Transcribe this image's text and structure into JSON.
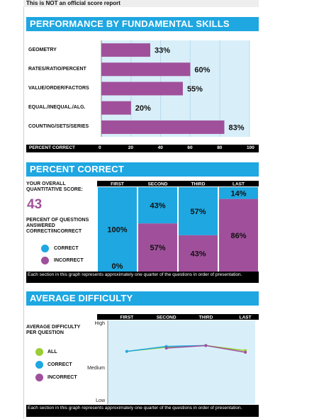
{
  "banner": "This is NOT an official score report",
  "colors": {
    "blue": "#1ea7e1",
    "purple": "#a0509b",
    "green": "#9acd32",
    "light_blue": "#d8effa",
    "black": "#000000"
  },
  "sections": {
    "performance": "PERFORMANCE BY FUNDAMENTAL SKILLS",
    "percent_correct": "PERCENT CORRECT",
    "avg_difficulty": "AVERAGE DIFFICULTY"
  },
  "percent_correct_panel": {
    "overall_label": "YOUR OVERALL QUANTITATIVE SCORE:",
    "overall_score": "43",
    "questions_label": "PERCENT OF QUESTIONS ANSWERED CORRECT/INCORRECT",
    "legend": {
      "correct": "CORRECT",
      "incorrect": "INCORRECT"
    },
    "note": "Each section in this graph represents approximately one quarter of the questions in order of presentation."
  },
  "difficulty_panel": {
    "label": "AVERAGE DIFFICULTY PER QUESTION",
    "legend": {
      "all": "ALL",
      "correct": "CORRECT",
      "incorrect": "INCORRECT"
    },
    "note": "Each section in this graph represents approximately one quarter of the questions in order of presentation."
  },
  "chart_data": [
    {
      "type": "bar",
      "title": "PERFORMANCE BY FUNDAMENTAL SKILLS",
      "orientation": "horizontal",
      "categories": [
        "GEOMETRY",
        "RATES/RATIO/PERCENT",
        "VALUE/ORDER/FACTORS",
        "EQUAL./INEQUAL./ALG.",
        "COUNTING/SETS/SERIES"
      ],
      "values": [
        33,
        60,
        55,
        20,
        83
      ],
      "value_labels": [
        "33%",
        "60%",
        "55%",
        "20%",
        "83%"
      ],
      "xlabel": "PERCENT CORRECT",
      "xlim": [
        0,
        100
      ],
      "xticks": [
        "0",
        "20",
        "40",
        "60",
        "80",
        "100"
      ],
      "grid": true
    },
    {
      "type": "bar",
      "title": "PERCENT CORRECT",
      "stacked": true,
      "categories": [
        "FIRST",
        "SECOND",
        "THIRD",
        "LAST"
      ],
      "series": [
        {
          "name": "CORRECT",
          "values": [
            100,
            43,
            57,
            14
          ],
          "labels": [
            "100%",
            "43%",
            "57%",
            "14%"
          ]
        },
        {
          "name": "INCORRECT",
          "values": [
            0,
            57,
            43,
            86
          ],
          "labels": [
            "0%",
            "57%",
            "43%",
            "86%"
          ]
        }
      ]
    },
    {
      "type": "line",
      "title": "AVERAGE DIFFICULTY",
      "categories": [
        "FIRST",
        "SECOND",
        "THIRD",
        "LAST"
      ],
      "yticks": [
        "Low",
        "Medium",
        "High"
      ],
      "ylim": [
        0,
        1
      ],
      "series": [
        {
          "name": "ALL",
          "values": [
            0.63,
            0.68,
            0.7,
            0.64
          ]
        },
        {
          "name": "CORRECT",
          "values": [
            0.63,
            0.69,
            0.7,
            null
          ]
        },
        {
          "name": "INCORRECT",
          "values": [
            null,
            0.67,
            0.7,
            0.62
          ]
        }
      ]
    }
  ]
}
